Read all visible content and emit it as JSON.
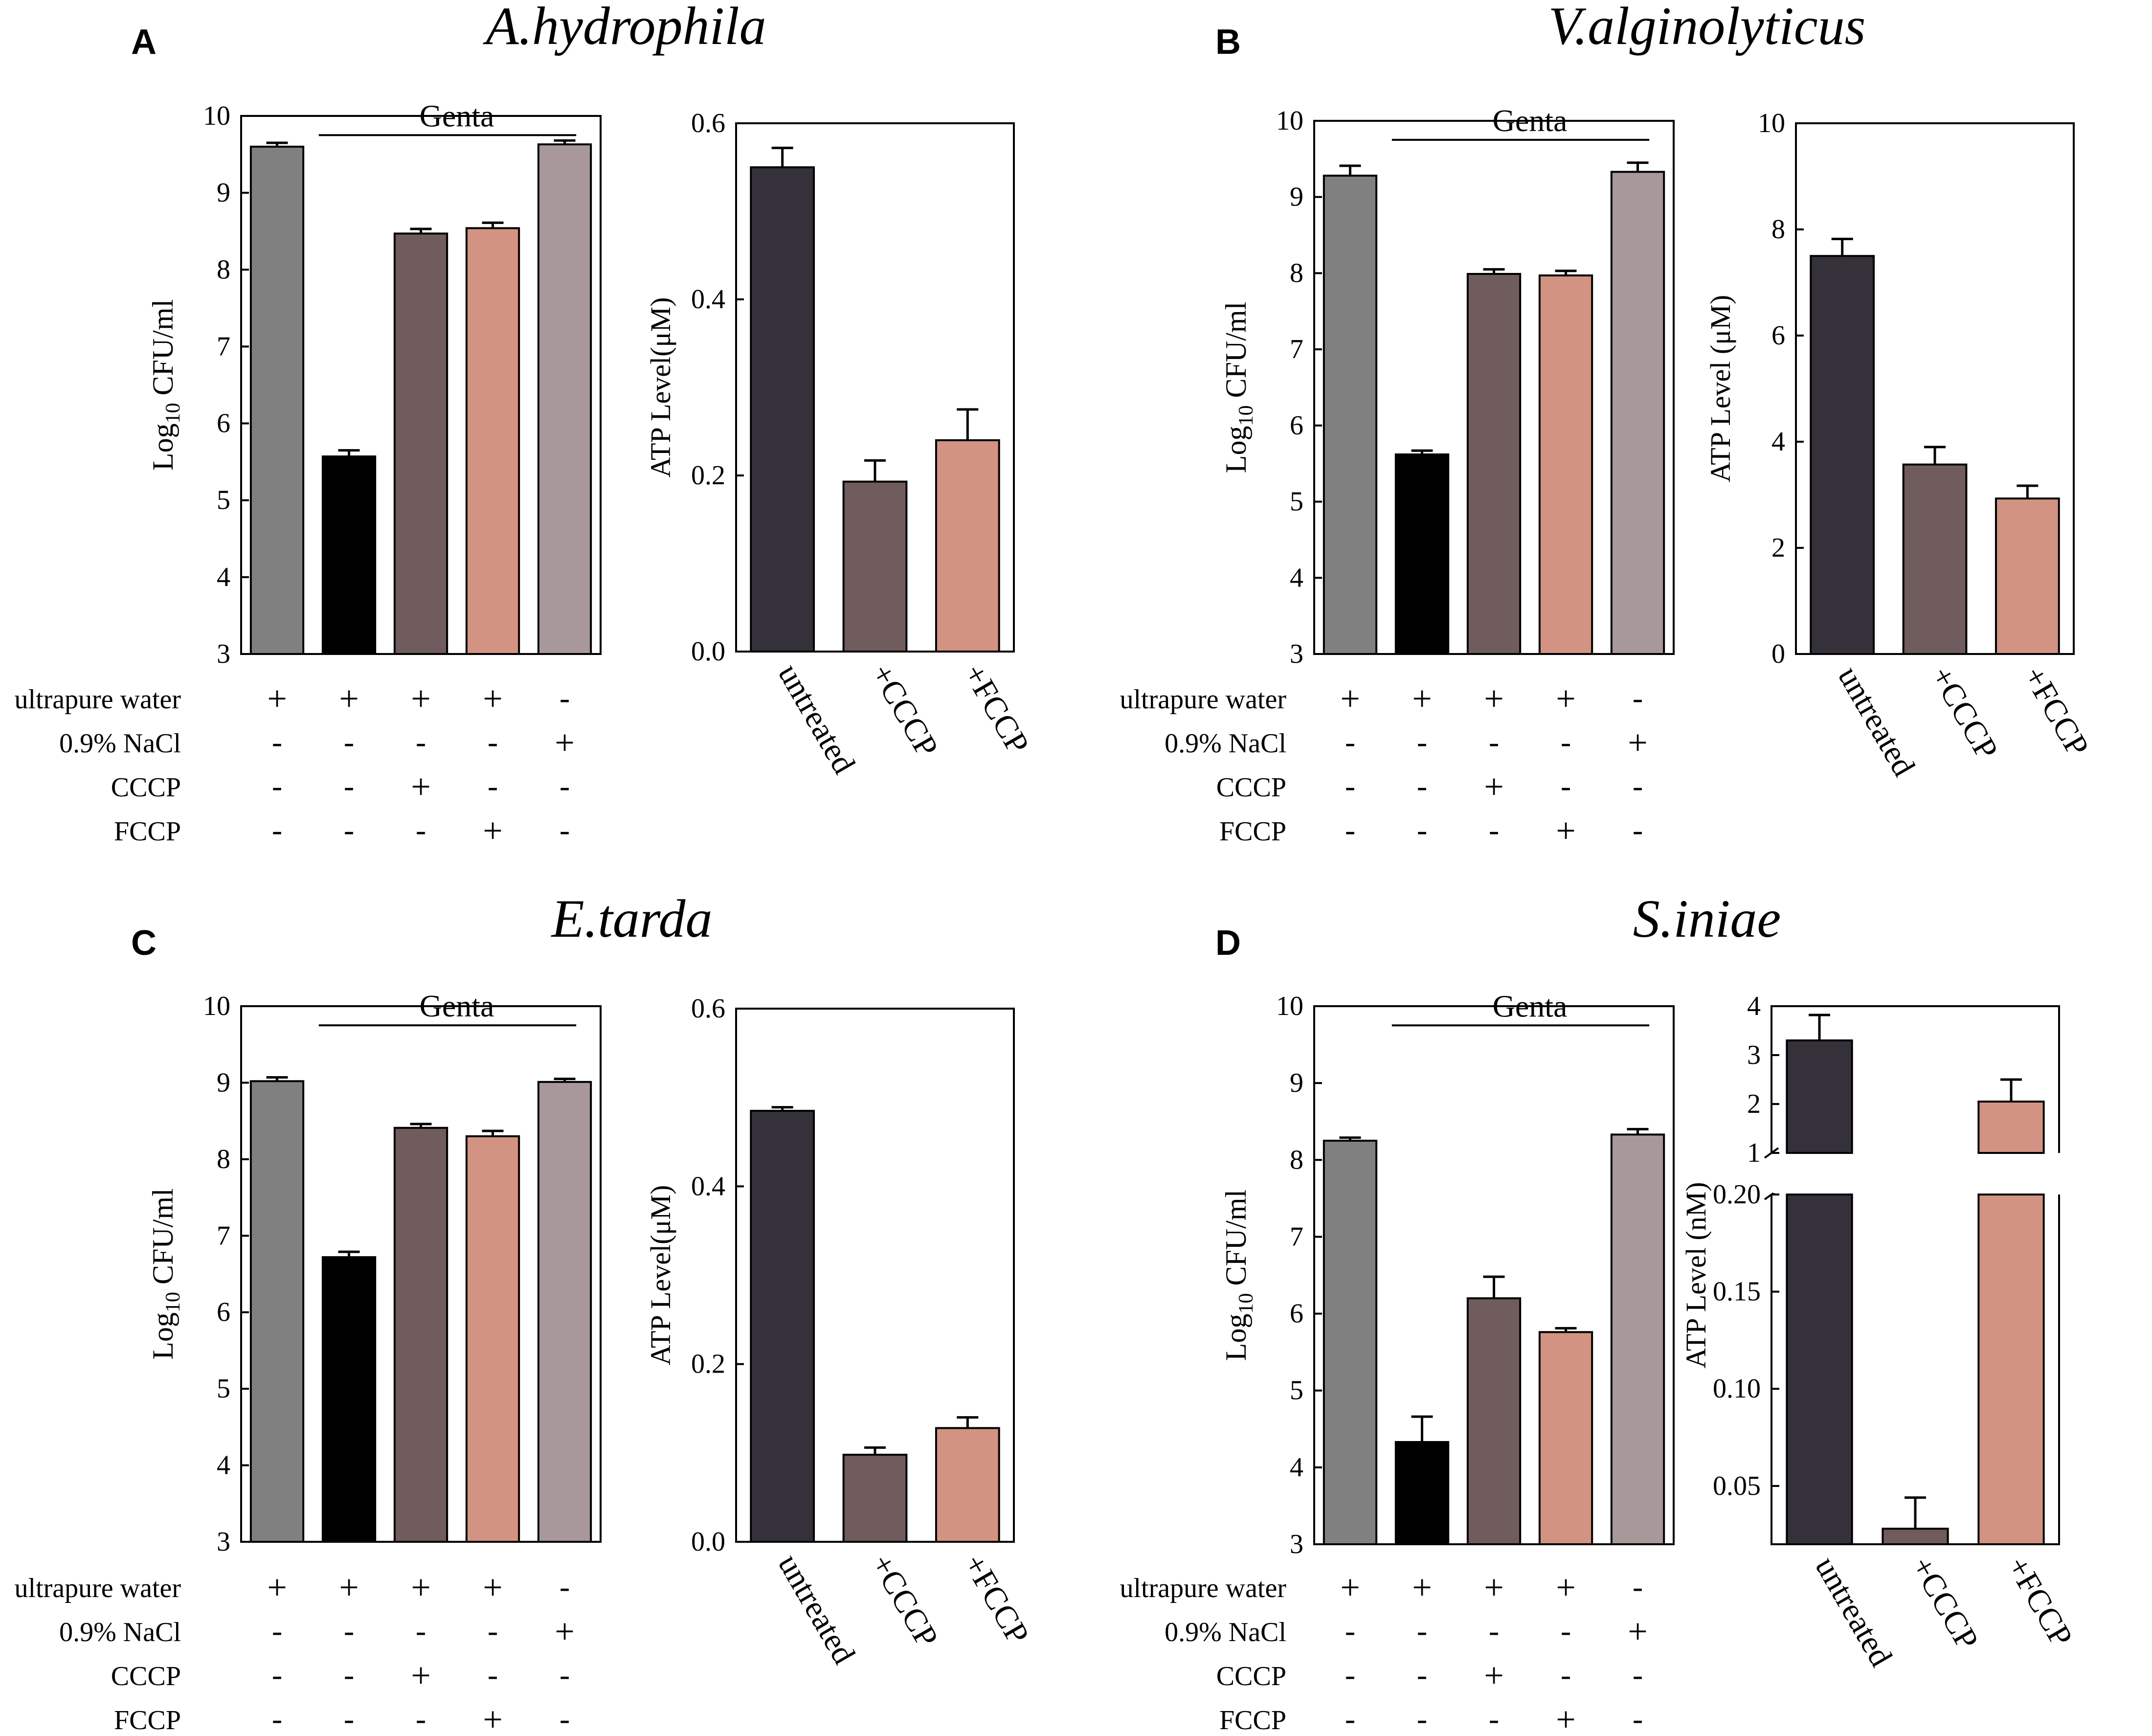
{
  "colors": {
    "gray": "#808080",
    "black": "#000000",
    "brown": "#705c5c",
    "salmon": "#d39382",
    "mauve": "#a89899",
    "dark": "#35313a",
    "axis": "#000000"
  },
  "row_labels": [
    "ultrapure water",
    "0.9% NaCl",
    "CCCP",
    "FCCP"
  ],
  "condition_table": [
    [
      "+",
      "+",
      "+",
      "+",
      "-"
    ],
    [
      "-",
      "-",
      "-",
      "-",
      "+"
    ],
    [
      "-",
      "-",
      "+",
      "-",
      "-"
    ],
    [
      "-",
      "-",
      "-",
      "+",
      "-"
    ]
  ],
  "panels": [
    {
      "letter": "A",
      "title": "A.hydrophila"
    },
    {
      "letter": "B",
      "title": "V.alginolyticus"
    },
    {
      "letter": "C",
      "title": "E.tarda"
    },
    {
      "letter": "D",
      "title": "S.iniae"
    }
  ],
  "chart_data": [
    {
      "panel": "A",
      "chart": "cfu",
      "type": "bar",
      "ylabel_main": "Log",
      "ylabel_sub": "10",
      "ylabel_rest": " CFU/ml",
      "ylim": [
        3,
        10
      ],
      "ticks": [
        "3",
        "4",
        "5",
        "6",
        "7",
        "8",
        "9",
        "10"
      ],
      "bracket_label": "Genta",
      "bracket_span": [
        1,
        4
      ],
      "values": [
        9.6,
        5.57,
        8.47,
        8.54,
        9.63
      ],
      "errors": [
        0.05,
        0.08,
        0.06,
        0.07,
        0.05
      ],
      "colors": [
        "#808080",
        "#000000",
        "#705c5c",
        "#d39382",
        "#a89899"
      ]
    },
    {
      "panel": "A",
      "chart": "atp",
      "type": "bar",
      "ylabel": "ATP  Level(μM)",
      "ylim": [
        0,
        0.6
      ],
      "ticks": [
        "0.0",
        "0.2",
        "0.4",
        "0.6"
      ],
      "categories": [
        "untreated",
        "+CCCP",
        "+FCCP"
      ],
      "values": [
        0.55,
        0.193,
        0.24
      ],
      "errors": [
        0.022,
        0.024,
        0.035
      ],
      "colors": [
        "#35313a",
        "#705c5c",
        "#d39382"
      ]
    },
    {
      "panel": "B",
      "chart": "cfu",
      "type": "bar",
      "ylabel_main": "Log",
      "ylabel_sub": "10",
      "ylabel_rest": " CFU/ml",
      "ylim": [
        3,
        10
      ],
      "ticks": [
        "3",
        "4",
        "5",
        "6",
        "7",
        "8",
        "9",
        "10"
      ],
      "bracket_label": "Genta",
      "bracket_span": [
        1,
        4
      ],
      "values": [
        9.28,
        5.62,
        7.99,
        7.97,
        9.33
      ],
      "errors": [
        0.13,
        0.05,
        0.06,
        0.06,
        0.12
      ],
      "colors": [
        "#808080",
        "#000000",
        "#705c5c",
        "#d39382",
        "#a89899"
      ]
    },
    {
      "panel": "B",
      "chart": "atp",
      "type": "bar",
      "ylabel": "ATP Level (μM)",
      "ylim": [
        0,
        10
      ],
      "ticks": [
        "0",
        "2",
        "4",
        "6",
        "8",
        "10"
      ],
      "categories": [
        "untreated",
        "+CCCP",
        "+FCCP"
      ],
      "values": [
        7.5,
        3.57,
        2.93
      ],
      "errors": [
        0.32,
        0.33,
        0.24
      ],
      "colors": [
        "#35313a",
        "#705c5c",
        "#d39382"
      ]
    },
    {
      "panel": "C",
      "chart": "cfu",
      "type": "bar",
      "ylabel_main": "Log",
      "ylabel_sub": "10",
      "ylabel_rest": " CFU/ml",
      "ylim": [
        3,
        10
      ],
      "ticks": [
        "3",
        "4",
        "5",
        "6",
        "7",
        "8",
        "9",
        "10"
      ],
      "bracket_label": "Genta",
      "bracket_span": [
        1,
        4
      ],
      "values": [
        9.02,
        6.72,
        8.41,
        8.3,
        9.01
      ],
      "errors": [
        0.05,
        0.07,
        0.05,
        0.07,
        0.04
      ],
      "colors": [
        "#808080",
        "#000000",
        "#705c5c",
        "#d39382",
        "#a89899"
      ]
    },
    {
      "panel": "C",
      "chart": "atp",
      "type": "bar",
      "ylabel": "ATP  Level(μM)",
      "ylim": [
        0,
        0.6
      ],
      "ticks": [
        "0.0",
        "0.2",
        "0.4",
        "0.6"
      ],
      "categories": [
        "untreated",
        "+CCCP",
        "+FCCP"
      ],
      "values": [
        0.485,
        0.098,
        0.128
      ],
      "errors": [
        0.004,
        0.008,
        0.012
      ],
      "colors": [
        "#35313a",
        "#705c5c",
        "#d39382"
      ]
    },
    {
      "panel": "D",
      "chart": "cfu",
      "type": "bar",
      "ylabel_main": "Log",
      "ylabel_sub": "10",
      "ylabel_rest": " CFU/ml",
      "ylim": [
        3,
        10
      ],
      "ticks": [
        "3",
        "4",
        "5",
        "6",
        "7",
        "8",
        "9",
        "10"
      ],
      "bracket_label": "Genta",
      "bracket_span": [
        1,
        4
      ],
      "values": [
        8.25,
        4.33,
        6.2,
        5.76,
        8.33
      ],
      "errors": [
        0.04,
        0.33,
        0.28,
        0.05,
        0.07
      ],
      "colors": [
        "#808080",
        "#000000",
        "#705c5c",
        "#d39382",
        "#a89899"
      ]
    },
    {
      "panel": "D",
      "chart": "atp",
      "type": "bar",
      "broken_axis": true,
      "ylabel": "ATP  Level (nM)",
      "ylim_upper": [
        1,
        4
      ],
      "ticks_upper": [
        "1",
        "2",
        "3",
        "4"
      ],
      "ylim_lower": [
        0.02,
        0.2
      ],
      "ticks_lower": [
        "0.05",
        "0.10",
        "0.15",
        "0.20"
      ],
      "categories": [
        "untreated",
        "+CCCP",
        "+FCCP"
      ],
      "values": [
        3.3,
        0.028,
        2.05
      ],
      "errors": [
        0.52,
        0.016,
        0.45
      ],
      "colors": [
        "#35313a",
        "#705c5c",
        "#d39382"
      ]
    }
  ]
}
